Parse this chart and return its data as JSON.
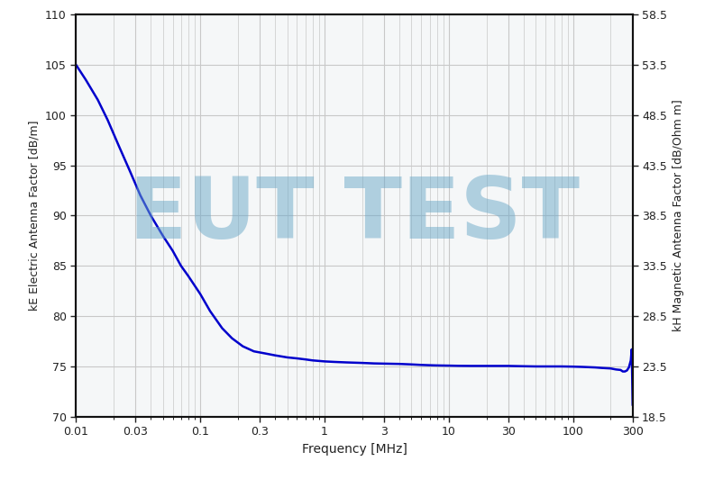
{
  "title": "",
  "xlabel": "Frequency [MHz]",
  "ylabel_left": "kE Electric Antenna Factor [dB/m]",
  "ylabel_right": "kH Magnetic Antenna Factor [dB/Ohm m]",
  "xlim": [
    0.01,
    300
  ],
  "ylim_left": [
    70,
    110
  ],
  "ylim_right": [
    18.5,
    58.5
  ],
  "xticks": [
    0.01,
    0.03,
    0.1,
    0.3,
    1,
    3,
    10,
    30,
    100,
    300
  ],
  "xtick_labels": [
    "0.01",
    "0.03",
    "0.1",
    "0.3",
    "1",
    "3",
    "10",
    "30",
    "100",
    "300"
  ],
  "yticks_left": [
    70,
    75,
    80,
    85,
    90,
    95,
    100,
    105,
    110
  ],
  "yticks_right": [
    18.5,
    23.5,
    28.5,
    33.5,
    38.5,
    43.5,
    48.5,
    53.5,
    58.5
  ],
  "line_color": "#0000cc",
  "line_width": 1.8,
  "watermark_text": "EUT TEST",
  "watermark_color": "#6aa8c8",
  "watermark_alpha": 0.5,
  "bg_color": "#f5f7f8",
  "fig_bg_color": "#ffffff",
  "grid_major_color": "#c8c8c8",
  "grid_minor_color": "#c8c8c8",
  "tick_color": "#222222",
  "label_color": "#222222",
  "spine_color": "#111111",
  "freq_data": [
    0.01,
    0.012,
    0.015,
    0.018,
    0.022,
    0.027,
    0.033,
    0.04,
    0.05,
    0.06,
    0.07,
    0.08,
    0.1,
    0.12,
    0.15,
    0.18,
    0.22,
    0.27,
    0.33,
    0.4,
    0.5,
    0.6,
    0.7,
    0.8,
    1.0,
    1.2,
    1.5,
    2.0,
    2.5,
    3.0,
    4.0,
    5.0,
    6.0,
    7.0,
    8.0,
    10.0,
    12.0,
    15.0,
    20.0,
    25.0,
    30.0,
    40.0,
    50.0,
    60.0,
    70.0,
    80.0,
    100.0,
    120.0,
    150.0,
    170.0,
    200.0,
    220.0,
    240.0,
    250.0,
    260.0,
    270.0,
    280.0,
    290.0,
    295.0,
    300.0
  ],
  "kE_data": [
    105.0,
    103.5,
    101.5,
    99.5,
    97.0,
    94.5,
    92.0,
    90.0,
    88.0,
    86.5,
    85.0,
    84.0,
    82.2,
    80.5,
    78.8,
    77.8,
    77.0,
    76.5,
    76.3,
    76.1,
    75.9,
    75.8,
    75.7,
    75.6,
    75.5,
    75.45,
    75.4,
    75.35,
    75.3,
    75.28,
    75.25,
    75.2,
    75.15,
    75.12,
    75.1,
    75.08,
    75.06,
    75.05,
    75.05,
    75.05,
    75.05,
    75.02,
    75.0,
    75.0,
    75.0,
    75.0,
    74.98,
    74.95,
    74.9,
    74.85,
    74.8,
    74.7,
    74.65,
    74.5,
    74.5,
    74.6,
    74.9,
    75.6,
    76.7,
    71.2
  ]
}
